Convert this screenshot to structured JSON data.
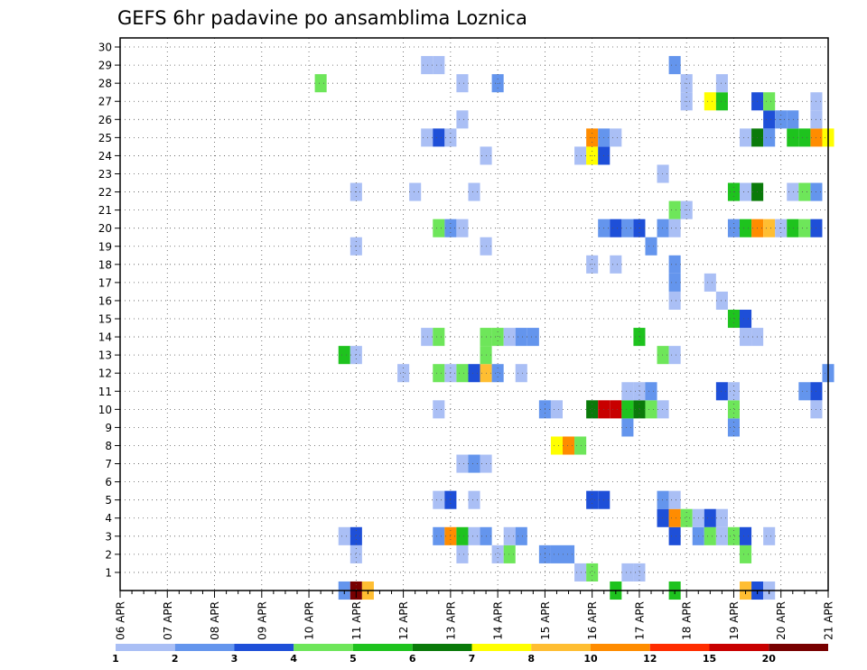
{
  "chart_data": {
    "type": "heatmap",
    "title": "GEFS 6hr padavine po ansamblima Loznica",
    "x_tick_labels": [
      "06 APR",
      "07 APR",
      "08 APR",
      "09 APR",
      "10 APR",
      "11 APR",
      "12 APR",
      "13 APR",
      "14 APR",
      "15 APR",
      "16 APR",
      "17 APR",
      "18 APR",
      "19 APR",
      "20 APR",
      "21 APR"
    ],
    "y_tick_labels": [
      "1",
      "2",
      "3",
      "4",
      "5",
      "6",
      "7",
      "8",
      "9",
      "10",
      "11",
      "12",
      "13",
      "14",
      "15",
      "16",
      "17",
      "18",
      "19",
      "20",
      "21",
      "22",
      "23",
      "24",
      "25",
      "26",
      "27",
      "28",
      "29",
      "30"
    ],
    "y_range": [
      0,
      30
    ],
    "x_step_count": 60,
    "steps_per_day": 4,
    "grid": "dotted",
    "colorbar": {
      "labels": [
        "1",
        "2",
        "3",
        "4",
        "5",
        "6",
        "7",
        "8",
        "10",
        "12",
        "15",
        "20"
      ],
      "colors": [
        "#aabff5",
        "#6495ed",
        "#1e4fd8",
        "#6ee65a",
        "#1ec31e",
        "#0a7a0a",
        "#ffff00",
        "#ffbe32",
        "#ff8c00",
        "#ff2d00",
        "#c80000",
        "#780000"
      ]
    },
    "cells": [
      {
        "m": 0,
        "t": 19,
        "c": 1
      },
      {
        "m": 0,
        "t": 20,
        "c": 11
      },
      {
        "m": 0,
        "t": 21,
        "c": 7
      },
      {
        "m": 0,
        "t": 42,
        "c": 4
      },
      {
        "m": 0,
        "t": 47,
        "c": 4
      },
      {
        "m": 0,
        "t": 53,
        "c": 7
      },
      {
        "m": 0,
        "t": 54,
        "c": 2
      },
      {
        "m": 0,
        "t": 55,
        "c": 0
      },
      {
        "m": 1,
        "t": 39,
        "c": 0
      },
      {
        "m": 1,
        "t": 40,
        "c": 3
      },
      {
        "m": 1,
        "t": 43,
        "c": 0
      },
      {
        "m": 1,
        "t": 44,
        "c": 0
      },
      {
        "m": 2,
        "t": 20,
        "c": 0
      },
      {
        "m": 2,
        "t": 29,
        "c": 0
      },
      {
        "m": 2,
        "t": 32,
        "c": 0
      },
      {
        "m": 2,
        "t": 33,
        "c": 3
      },
      {
        "m": 2,
        "t": 36,
        "c": 1
      },
      {
        "m": 2,
        "t": 37,
        "c": 1
      },
      {
        "m": 2,
        "t": 38,
        "c": 1
      },
      {
        "m": 2,
        "t": 53,
        "c": 3
      },
      {
        "m": 3,
        "t": 19,
        "c": 0
      },
      {
        "m": 3,
        "t": 20,
        "c": 2
      },
      {
        "m": 3,
        "t": 27,
        "c": 1
      },
      {
        "m": 3,
        "t": 28,
        "c": 8
      },
      {
        "m": 3,
        "t": 29,
        "c": 4
      },
      {
        "m": 3,
        "t": 30,
        "c": 0
      },
      {
        "m": 3,
        "t": 31,
        "c": 1
      },
      {
        "m": 3,
        "t": 33,
        "c": 0
      },
      {
        "m": 3,
        "t": 34,
        "c": 1
      },
      {
        "m": 3,
        "t": 47,
        "c": 2
      },
      {
        "m": 3,
        "t": 49,
        "c": 1
      },
      {
        "m": 3,
        "t": 50,
        "c": 3
      },
      {
        "m": 3,
        "t": 51,
        "c": 0
      },
      {
        "m": 3,
        "t": 52,
        "c": 3
      },
      {
        "m": 3,
        "t": 53,
        "c": 2
      },
      {
        "m": 3,
        "t": 55,
        "c": 0
      },
      {
        "m": 4,
        "t": 46,
        "c": 2
      },
      {
        "m": 4,
        "t": 47,
        "c": 8
      },
      {
        "m": 4,
        "t": 48,
        "c": 3
      },
      {
        "m": 4,
        "t": 49,
        "c": 0
      },
      {
        "m": 4,
        "t": 50,
        "c": 2
      },
      {
        "m": 4,
        "t": 51,
        "c": 0
      },
      {
        "m": 5,
        "t": 27,
        "c": 0
      },
      {
        "m": 5,
        "t": 28,
        "c": 2
      },
      {
        "m": 5,
        "t": 30,
        "c": 0
      },
      {
        "m": 5,
        "t": 40,
        "c": 2
      },
      {
        "m": 5,
        "t": 41,
        "c": 2
      },
      {
        "m": 5,
        "t": 46,
        "c": 1
      },
      {
        "m": 5,
        "t": 47,
        "c": 0
      },
      {
        "m": 7,
        "t": 29,
        "c": 0
      },
      {
        "m": 7,
        "t": 30,
        "c": 1
      },
      {
        "m": 7,
        "t": 31,
        "c": 0
      },
      {
        "m": 8,
        "t": 37,
        "c": 6
      },
      {
        "m": 8,
        "t": 38,
        "c": 8
      },
      {
        "m": 8,
        "t": 39,
        "c": 3
      },
      {
        "m": 9,
        "t": 43,
        "c": 1
      },
      {
        "m": 9,
        "t": 52,
        "c": 1
      },
      {
        "m": 10,
        "t": 27,
        "c": 0
      },
      {
        "m": 10,
        "t": 36,
        "c": 1
      },
      {
        "m": 10,
        "t": 37,
        "c": 0
      },
      {
        "m": 10,
        "t": 40,
        "c": 5
      },
      {
        "m": 10,
        "t": 41,
        "c": 10
      },
      {
        "m": 10,
        "t": 42,
        "c": 10
      },
      {
        "m": 10,
        "t": 43,
        "c": 4
      },
      {
        "m": 10,
        "t": 44,
        "c": 5
      },
      {
        "m": 10,
        "t": 45,
        "c": 3
      },
      {
        "m": 10,
        "t": 46,
        "c": 0
      },
      {
        "m": 10,
        "t": 52,
        "c": 3
      },
      {
        "m": 10,
        "t": 59,
        "c": 0
      },
      {
        "m": 11,
        "t": 43,
        "c": 0
      },
      {
        "m": 11,
        "t": 44,
        "c": 0
      },
      {
        "m": 11,
        "t": 45,
        "c": 1
      },
      {
        "m": 11,
        "t": 51,
        "c": 2
      },
      {
        "m": 11,
        "t": 52,
        "c": 0
      },
      {
        "m": 11,
        "t": 58,
        "c": 1
      },
      {
        "m": 11,
        "t": 59,
        "c": 2
      },
      {
        "m": 12,
        "t": 24,
        "c": 0
      },
      {
        "m": 12,
        "t": 27,
        "c": 3
      },
      {
        "m": 12,
        "t": 28,
        "c": 0
      },
      {
        "m": 12,
        "t": 29,
        "c": 3
      },
      {
        "m": 12,
        "t": 30,
        "c": 2
      },
      {
        "m": 12,
        "t": 31,
        "c": 7
      },
      {
        "m": 12,
        "t": 32,
        "c": 1
      },
      {
        "m": 12,
        "t": 34,
        "c": 0
      },
      {
        "m": 12,
        "t": 60,
        "c": 1
      },
      {
        "m": 13,
        "t": 19,
        "c": 4
      },
      {
        "m": 13,
        "t": 20,
        "c": 0
      },
      {
        "m": 13,
        "t": 31,
        "c": 3
      },
      {
        "m": 13,
        "t": 46,
        "c": 3
      },
      {
        "m": 13,
        "t": 47,
        "c": 0
      },
      {
        "m": 14,
        "t": 26,
        "c": 0
      },
      {
        "m": 14,
        "t": 27,
        "c": 3
      },
      {
        "m": 14,
        "t": 31,
        "c": 3
      },
      {
        "m": 14,
        "t": 32,
        "c": 3
      },
      {
        "m": 14,
        "t": 33,
        "c": 0
      },
      {
        "m": 14,
        "t": 34,
        "c": 1
      },
      {
        "m": 14,
        "t": 35,
        "c": 1
      },
      {
        "m": 14,
        "t": 44,
        "c": 4
      },
      {
        "m": 14,
        "t": 53,
        "c": 0
      },
      {
        "m": 14,
        "t": 54,
        "c": 0
      },
      {
        "m": 15,
        "t": 52,
        "c": 4
      },
      {
        "m": 15,
        "t": 53,
        "c": 2
      },
      {
        "m": 16,
        "t": 47,
        "c": 0
      },
      {
        "m": 16,
        "t": 51,
        "c": 0
      },
      {
        "m": 17,
        "t": 47,
        "c": 1
      },
      {
        "m": 17,
        "t": 50,
        "c": 0
      },
      {
        "m": 18,
        "t": 40,
        "c": 0
      },
      {
        "m": 18,
        "t": 42,
        "c": 0
      },
      {
        "m": 18,
        "t": 47,
        "c": 1
      },
      {
        "m": 19,
        "t": 20,
        "c": 0
      },
      {
        "m": 19,
        "t": 31,
        "c": 0
      },
      {
        "m": 19,
        "t": 45,
        "c": 1
      },
      {
        "m": 20,
        "t": 27,
        "c": 3
      },
      {
        "m": 20,
        "t": 28,
        "c": 1
      },
      {
        "m": 20,
        "t": 29,
        "c": 0
      },
      {
        "m": 20,
        "t": 41,
        "c": 1
      },
      {
        "m": 20,
        "t": 42,
        "c": 2
      },
      {
        "m": 20,
        "t": 43,
        "c": 1
      },
      {
        "m": 20,
        "t": 44,
        "c": 2
      },
      {
        "m": 20,
        "t": 46,
        "c": 1
      },
      {
        "m": 20,
        "t": 47,
        "c": 0
      },
      {
        "m": 20,
        "t": 52,
        "c": 1
      },
      {
        "m": 20,
        "t": 53,
        "c": 4
      },
      {
        "m": 20,
        "t": 54,
        "c": 8
      },
      {
        "m": 20,
        "t": 55,
        "c": 7
      },
      {
        "m": 20,
        "t": 56,
        "c": 0
      },
      {
        "m": 20,
        "t": 57,
        "c": 4
      },
      {
        "m": 20,
        "t": 58,
        "c": 3
      },
      {
        "m": 20,
        "t": 59,
        "c": 2
      },
      {
        "m": 21,
        "t": 47,
        "c": 3
      },
      {
        "m": 21,
        "t": 48,
        "c": 0
      },
      {
        "m": 22,
        "t": 20,
        "c": 0
      },
      {
        "m": 22,
        "t": 25,
        "c": 0
      },
      {
        "m": 22,
        "t": 30,
        "c": 0
      },
      {
        "m": 22,
        "t": 52,
        "c": 4
      },
      {
        "m": 22,
        "t": 53,
        "c": 0
      },
      {
        "m": 22,
        "t": 54,
        "c": 5
      },
      {
        "m": 22,
        "t": 57,
        "c": 0
      },
      {
        "m": 22,
        "t": 58,
        "c": 3
      },
      {
        "m": 22,
        "t": 59,
        "c": 1
      },
      {
        "m": 23,
        "t": 46,
        "c": 0
      },
      {
        "m": 24,
        "t": 31,
        "c": 0
      },
      {
        "m": 24,
        "t": 39,
        "c": 0
      },
      {
        "m": 24,
        "t": 40,
        "c": 6
      },
      {
        "m": 24,
        "t": 41,
        "c": 2
      },
      {
        "m": 25,
        "t": 26,
        "c": 0
      },
      {
        "m": 25,
        "t": 27,
        "c": 2
      },
      {
        "m": 25,
        "t": 28,
        "c": 0
      },
      {
        "m": 25,
        "t": 40,
        "c": 8
      },
      {
        "m": 25,
        "t": 41,
        "c": 1
      },
      {
        "m": 25,
        "t": 42,
        "c": 0
      },
      {
        "m": 25,
        "t": 53,
        "c": 0
      },
      {
        "m": 25,
        "t": 54,
        "c": 5
      },
      {
        "m": 25,
        "t": 55,
        "c": 1
      },
      {
        "m": 25,
        "t": 57,
        "c": 4
      },
      {
        "m": 25,
        "t": 58,
        "c": 4
      },
      {
        "m": 25,
        "t": 59,
        "c": 8
      },
      {
        "m": 25,
        "t": 60,
        "c": 6
      },
      {
        "m": 26,
        "t": 29,
        "c": 0
      },
      {
        "m": 26,
        "t": 55,
        "c": 2
      },
      {
        "m": 26,
        "t": 56,
        "c": 1
      },
      {
        "m": 26,
        "t": 57,
        "c": 1
      },
      {
        "m": 26,
        "t": 59,
        "c": 0
      },
      {
        "m": 27,
        "t": 48,
        "c": 0
      },
      {
        "m": 27,
        "t": 50,
        "c": 6
      },
      {
        "m": 27,
        "t": 51,
        "c": 4
      },
      {
        "m": 27,
        "t": 54,
        "c": 2
      },
      {
        "m": 27,
        "t": 55,
        "c": 3
      },
      {
        "m": 27,
        "t": 59,
        "c": 0
      },
      {
        "m": 28,
        "t": 17,
        "c": 3
      },
      {
        "m": 28,
        "t": 29,
        "c": 0
      },
      {
        "m": 28,
        "t": 32,
        "c": 1
      },
      {
        "m": 28,
        "t": 48,
        "c": 0
      },
      {
        "m": 28,
        "t": 51,
        "c": 0
      },
      {
        "m": 29,
        "t": 26,
        "c": 0
      },
      {
        "m": 29,
        "t": 27,
        "c": 0
      },
      {
        "m": 29,
        "t": 47,
        "c": 1
      }
    ]
  }
}
